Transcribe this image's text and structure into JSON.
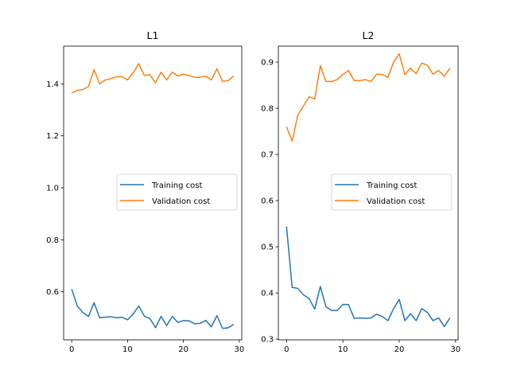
{
  "chart_data": [
    {
      "type": "line",
      "title": "L1",
      "xlabel": "",
      "ylabel": "",
      "x": [
        0,
        1,
        2,
        3,
        4,
        5,
        6,
        7,
        8,
        9,
        10,
        11,
        12,
        13,
        14,
        15,
        16,
        17,
        18,
        19,
        20,
        21,
        22,
        23,
        24,
        25,
        26,
        27,
        28,
        29
      ],
      "xlim": [
        -1.45,
        30.45
      ],
      "ylim": [
        0.415,
        1.545
      ],
      "xticks": [
        0,
        10,
        20,
        30
      ],
      "xtick_labels": [
        "0",
        "10",
        "20",
        "30"
      ],
      "yticks": [
        0.6,
        0.8,
        1.0,
        1.2,
        1.4
      ],
      "ytick_labels": [
        "0.6",
        "0.8",
        "1.0",
        "1.2",
        "1.4"
      ],
      "grid": false,
      "legend": "center-right",
      "series": [
        {
          "name": "Training cost",
          "color": "#1f77b4",
          "values": [
            0.61,
            0.545,
            0.52,
            0.505,
            0.558,
            0.5,
            0.502,
            0.504,
            0.5,
            0.502,
            0.492,
            0.514,
            0.545,
            0.506,
            0.497,
            0.462,
            0.505,
            0.47,
            0.505,
            0.482,
            0.489,
            0.488,
            0.477,
            0.478,
            0.49,
            0.465,
            0.508,
            0.459,
            0.461,
            0.475
          ]
        },
        {
          "name": "Validation cost",
          "color": "#ff7f0e",
          "values": [
            1.365,
            1.375,
            1.378,
            1.39,
            1.455,
            1.4,
            1.415,
            1.42,
            1.427,
            1.428,
            1.415,
            1.442,
            1.478,
            1.432,
            1.435,
            1.404,
            1.445,
            1.415,
            1.445,
            1.43,
            1.437,
            1.432,
            1.425,
            1.425,
            1.43,
            1.415,
            1.458,
            1.41,
            1.412,
            1.43
          ]
        }
      ]
    },
    {
      "type": "line",
      "title": "L2",
      "xlabel": "",
      "ylabel": "",
      "x": [
        0,
        1,
        2,
        3,
        4,
        5,
        6,
        7,
        8,
        9,
        10,
        11,
        12,
        13,
        14,
        15,
        16,
        17,
        18,
        19,
        20,
        21,
        22,
        23,
        24,
        25,
        26,
        27,
        28,
        29
      ],
      "xlim": [
        -1.45,
        30.45
      ],
      "ylim": [
        0.2985,
        0.9345
      ],
      "xticks": [
        0,
        10,
        20,
        30
      ],
      "xtick_labels": [
        "0",
        "10",
        "20",
        "30"
      ],
      "yticks": [
        0.3,
        0.4,
        0.5,
        0.6,
        0.7,
        0.8,
        0.9
      ],
      "ytick_labels": [
        "0.3",
        "0.4",
        "0.5",
        "0.6",
        "0.7",
        "0.8",
        "0.9"
      ],
      "grid": false,
      "legend": "center-right",
      "series": [
        {
          "name": "Training cost",
          "color": "#1f77b4",
          "values": [
            0.544,
            0.412,
            0.41,
            0.396,
            0.388,
            0.365,
            0.414,
            0.37,
            0.362,
            0.362,
            0.375,
            0.375,
            0.345,
            0.346,
            0.345,
            0.346,
            0.354,
            0.349,
            0.34,
            0.366,
            0.386,
            0.34,
            0.355,
            0.34,
            0.366,
            0.358,
            0.34,
            0.346,
            0.327,
            0.346
          ]
        },
        {
          "name": "Validation cost",
          "color": "#ff7f0e",
          "values": [
            0.76,
            0.729,
            0.785,
            0.805,
            0.825,
            0.82,
            0.892,
            0.858,
            0.858,
            0.862,
            0.873,
            0.882,
            0.86,
            0.86,
            0.862,
            0.858,
            0.874,
            0.873,
            0.867,
            0.9,
            0.918,
            0.873,
            0.887,
            0.875,
            0.898,
            0.893,
            0.874,
            0.882,
            0.869,
            0.887
          ]
        }
      ]
    }
  ]
}
